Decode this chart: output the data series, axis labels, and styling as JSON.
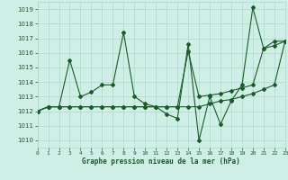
{
  "title": "Graphe pression niveau de la mer (hPa)",
  "bg_color": "#ceeee6",
  "grid_color": "#aad9cc",
  "line_color": "#1a5c28",
  "xlim": [
    0,
    23
  ],
  "ylim": [
    1009.5,
    1019.5
  ],
  "xticks": [
    0,
    1,
    2,
    3,
    4,
    5,
    6,
    7,
    8,
    9,
    10,
    11,
    12,
    13,
    14,
    15,
    16,
    17,
    18,
    19,
    20,
    21,
    22,
    23
  ],
  "yticks": [
    1010,
    1011,
    1012,
    1013,
    1014,
    1015,
    1016,
    1017,
    1018,
    1019
  ],
  "s1_x": [
    0,
    1,
    2,
    3,
    4,
    5,
    6,
    7,
    8,
    9,
    10,
    11,
    12,
    13,
    14,
    15,
    16,
    17,
    18,
    19,
    20,
    21,
    22,
    23
  ],
  "s1_y": [
    1012.0,
    1012.3,
    1012.3,
    1015.5,
    1013.0,
    1013.3,
    1013.8,
    1013.8,
    1017.4,
    1013.0,
    1012.5,
    1012.3,
    1011.8,
    1011.5,
    1016.6,
    1010.0,
    1013.0,
    1011.1,
    1012.7,
    1013.8,
    1019.1,
    1016.3,
    1016.8,
    1016.8
  ],
  "s2_x": [
    0,
    1,
    2,
    3,
    4,
    5,
    6,
    7,
    8,
    9,
    10,
    11,
    12,
    13,
    14,
    15,
    16,
    17,
    18,
    19,
    20,
    21,
    22,
    23
  ],
  "s2_y": [
    1012.0,
    1012.3,
    1012.3,
    1012.3,
    1012.3,
    1012.3,
    1012.3,
    1012.3,
    1012.3,
    1012.3,
    1012.3,
    1012.3,
    1012.3,
    1012.3,
    1016.1,
    1013.0,
    1013.1,
    1013.2,
    1013.4,
    1013.6,
    1013.8,
    1016.3,
    1016.5,
    1016.8
  ],
  "s3_x": [
    0,
    1,
    2,
    3,
    4,
    5,
    6,
    7,
    8,
    9,
    10,
    11,
    12,
    13,
    14,
    15,
    16,
    17,
    18,
    19,
    20,
    21,
    22,
    23
  ],
  "s3_y": [
    1012.0,
    1012.3,
    1012.3,
    1012.3,
    1012.3,
    1012.3,
    1012.3,
    1012.3,
    1012.3,
    1012.3,
    1012.3,
    1012.3,
    1012.3,
    1012.3,
    1012.3,
    1012.3,
    1012.5,
    1012.7,
    1012.8,
    1013.0,
    1013.2,
    1013.5,
    1013.8,
    1016.8
  ]
}
